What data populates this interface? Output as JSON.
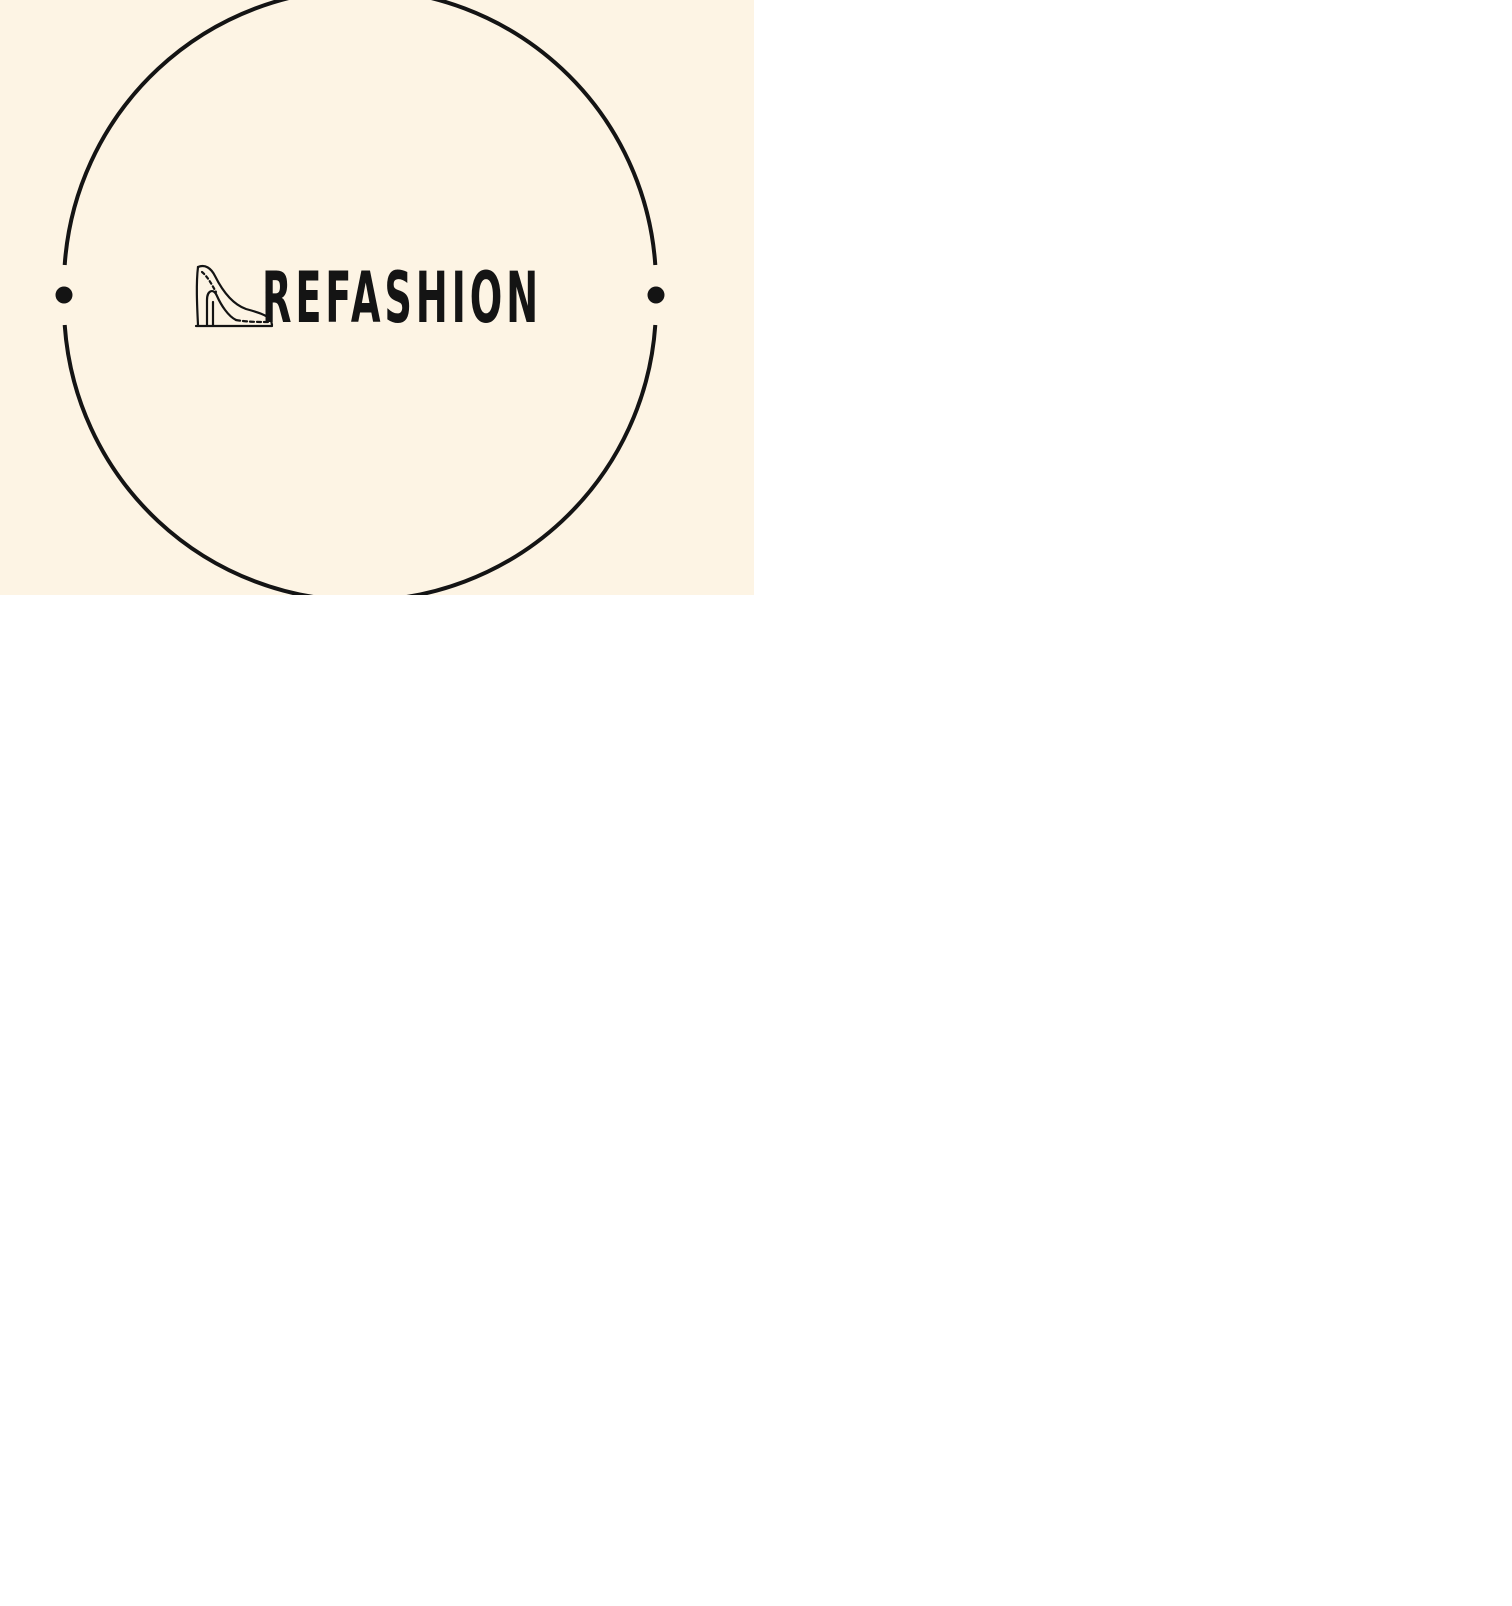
{
  "logo": {
    "brand_name": "REFASHION",
    "icon": "high-heel-shoe-icon",
    "background_color": "#fdf4e4",
    "ink_color": "#141414"
  }
}
